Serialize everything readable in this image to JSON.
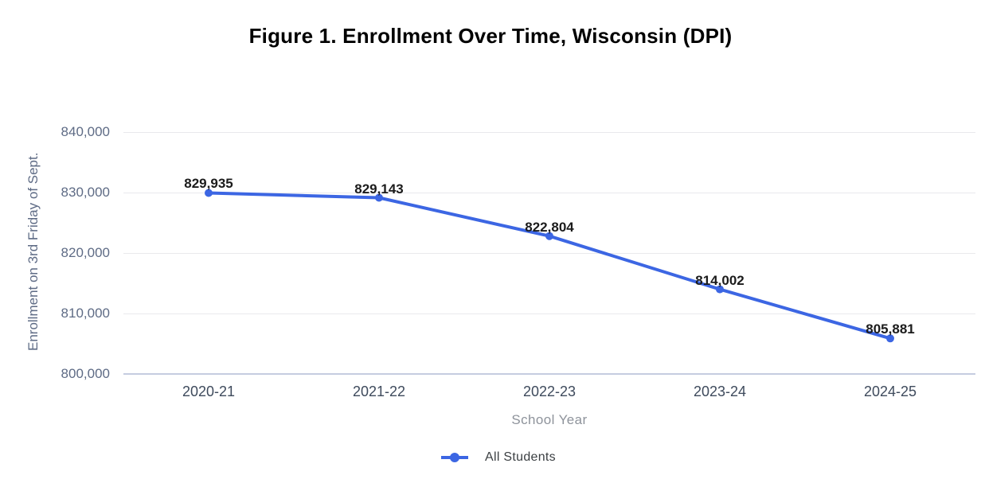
{
  "chart_data": {
    "type": "line",
    "title": "Figure 1. Enrollment Over Time, Wisconsin (DPI)",
    "categories": [
      "2020-21",
      "2021-22",
      "2022-23",
      "2023-24",
      "2024-25"
    ],
    "series": [
      {
        "name": "All Students",
        "values": [
          829935,
          829143,
          822804,
          814002,
          805881
        ],
        "data_labels": [
          "829,935",
          "829,143",
          "822,804",
          "814,002",
          "805,881"
        ]
      }
    ],
    "xlabel": "School Year",
    "ylabel": "Enrollment on 3rd Friday of Sept.",
    "ylim": [
      800000,
      840000
    ],
    "ytick_step": 10000,
    "ytick_labels": [
      "800,000",
      "810,000",
      "820,000",
      "830,000",
      "840,000"
    ],
    "grid": true,
    "legend_position": "bottom",
    "marker": "circle"
  },
  "colors": {
    "series-blue": "#3c66e3",
    "gridline": "#e9e9ec",
    "baseline": "#c5cce0",
    "title-text": "#000000",
    "data-label-text": "#1b1b1b",
    "ytick-text": "#5e6b85",
    "yaxis-title-text": "#5e6b85",
    "xtick-text": "#3e4a5c",
    "xaxis-title-text": "#8e939b",
    "legend-text": "#3c4043",
    "background": "#ffffff"
  }
}
